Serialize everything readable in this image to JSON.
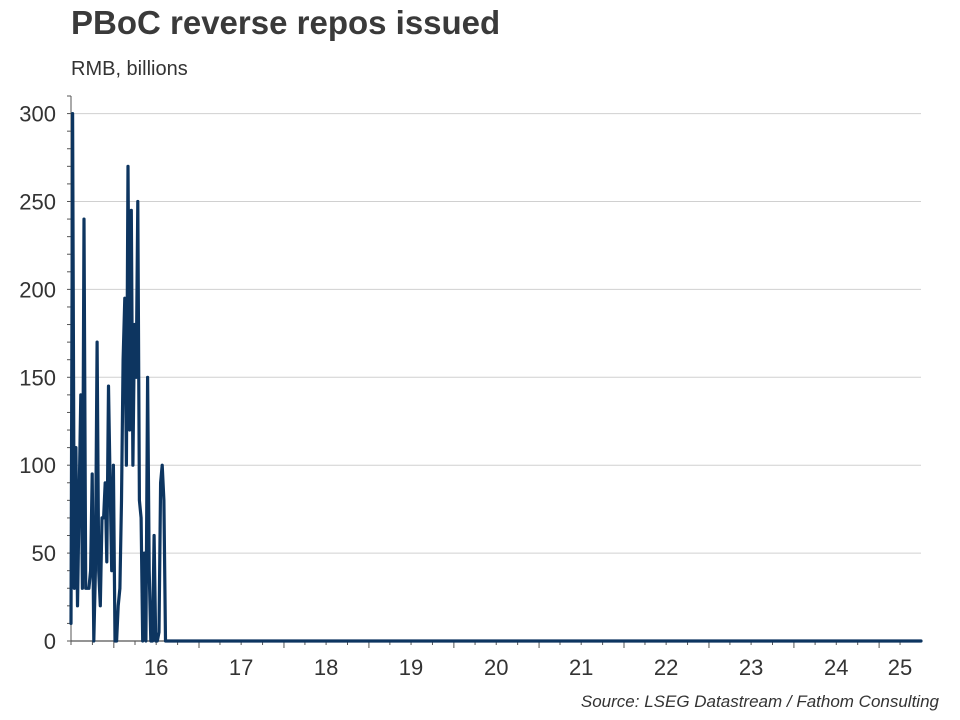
{
  "title": "PBoC reverse repos issued",
  "subtitle": "RMB, billions",
  "source": "Source: LSEG Datastream / Fathom Consulting",
  "chart_data": {
    "type": "line",
    "title": "PBoC reverse repos issued",
    "subtitle": "RMB, billions",
    "xlabel": "",
    "ylabel": "",
    "ylim": [
      0,
      310
    ],
    "yticks": [
      0,
      50,
      100,
      150,
      200,
      250,
      300
    ],
    "xlim": [
      "2015-07-01",
      "2025-06-30"
    ],
    "xticks": [
      {
        "label": "16",
        "date": "2016-07-01"
      },
      {
        "label": "17",
        "date": "2017-07-01"
      },
      {
        "label": "18",
        "date": "2018-07-01"
      },
      {
        "label": "19",
        "date": "2019-07-01"
      },
      {
        "label": "20",
        "date": "2020-07-01"
      },
      {
        "label": "21",
        "date": "2021-07-01"
      },
      {
        "label": "22",
        "date": "2022-07-01"
      },
      {
        "label": "23",
        "date": "2023-07-01"
      },
      {
        "label": "24",
        "date": "2024-07-01"
      },
      {
        "label": "25",
        "date": "2025-04-01"
      }
    ],
    "grid": "horizontal",
    "line_color": "#0d3560",
    "series": [
      {
        "x": [
          "2015-07-01",
          "2015-07-08",
          "2015-07-15",
          "2015-07-22",
          "2015-07-29",
          "2015-08-05",
          "2015-08-12",
          "2015-08-19",
          "2015-08-26",
          "2015-09-02",
          "2015-09-09",
          "2015-09-16",
          "2015-09-23",
          "2015-09-30",
          "2015-10-07",
          "2015-10-14",
          "2015-10-21",
          "2015-10-28",
          "2015-11-04",
          "2015-11-11",
          "2015-11-18",
          "2015-11-25",
          "2015-12-02",
          "2015-12-09",
          "2015-12-16",
          "2015-12-23",
          "2015-12-30",
          "2016-01-06",
          "2016-01-13",
          "2016-01-20",
          "2016-01-27",
          "2016-02-03",
          "2016-02-10",
          "2016-02-17",
          "2016-02-24",
          "2016-03-02",
          "2016-03-09",
          "2016-03-16",
          "2016-03-23",
          "2016-03-30",
          "2016-04-06",
          "2016-04-13",
          "2016-04-20",
          "2016-04-27",
          "2016-05-04",
          "2016-05-11",
          "2016-05-18",
          "2016-05-25",
          "2016-06-01",
          "2016-06-08",
          "2016-06-15",
          "2016-06-22",
          "2016-06-29",
          "2016-07-06",
          "2016-07-13",
          "2016-07-20",
          "2016-07-27",
          "2016-08-03",
          "2016-08-10",
          "2016-08-17",
          "2016-08-24",
          "2016-08-31",
          "2016-09-07",
          "2016-09-14",
          "2016-09-21",
          "2016-09-28",
          "2016-10-05",
          "2016-10-12",
          "2016-10-19",
          "2016-10-26",
          "2016-11-02",
          "2016-11-09",
          "2016-11-16",
          "2016-11-23",
          "2016-11-30",
          "2016-12-07",
          "2016-12-14",
          "2016-12-21",
          "2016-12-28",
          "2017-01-04",
          "2017-01-11",
          "2017-01-18",
          "2017-01-25",
          "2017-02-01",
          "2017-02-08",
          "2017-02-15",
          "2017-02-22",
          "2017-03-01",
          "2017-03-08",
          "2017-03-15",
          "2017-03-22",
          "2017-03-29",
          "2017-04-05",
          "2017-04-12",
          "2017-04-19",
          "2017-04-26",
          "2017-05-03",
          "2017-05-10",
          "2017-05-17",
          "2017-05-24",
          "2017-05-31",
          "2017-06-07",
          "2017-06-14",
          "2017-06-21",
          "2017-06-28",
          "2025-06-30"
        ],
        "values": [
          10,
          300,
          30,
          110,
          20,
          80,
          140,
          30,
          240,
          30,
          30,
          30,
          40,
          95,
          0,
          40,
          170,
          40,
          20,
          70,
          70,
          90,
          45,
          145,
          90,
          40,
          100,
          0,
          0,
          20,
          30,
          80,
          160,
          195,
          100,
          270,
          120,
          245,
          100,
          180,
          150,
          250,
          80,
          70,
          0,
          50,
          0,
          150,
          40,
          0,
          0,
          60,
          0,
          0,
          5,
          90,
          100,
          80,
          0,
          0,
          0,
          0,
          0,
          0,
          0,
          0,
          0,
          0,
          0,
          0,
          0,
          0,
          0,
          0,
          0,
          0,
          0,
          0,
          0,
          0,
          0,
          0,
          0,
          0,
          0,
          0,
          0,
          0,
          0,
          0,
          0,
          0,
          0,
          0,
          0,
          0,
          0,
          0,
          0,
          0,
          0,
          0,
          0,
          0,
          0,
          0
        ]
      }
    ]
  }
}
